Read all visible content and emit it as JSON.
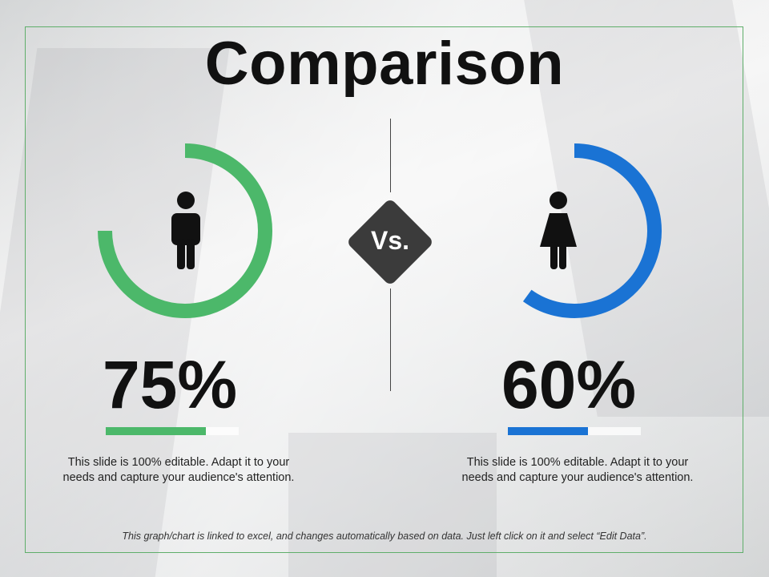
{
  "title": "Comparison",
  "vs_label": "Vs.",
  "footnote": "This graph/chart is linked to excel, and changes automatically based on data.  Just left click on it and select “Edit Data”.",
  "chart_data": [
    {
      "type": "pie",
      "subtype": "donut",
      "icon": "male-person-icon",
      "value": 75,
      "label": "75%",
      "color": "#4cb86a",
      "description": "This slide is 100% editable. Adapt it to your needs and capture your audience's attention."
    },
    {
      "type": "pie",
      "subtype": "donut",
      "icon": "female-person-icon",
      "value": 60,
      "label": "60%",
      "color": "#1a73d4",
      "description": "This slide is 100% editable. Adapt it to your needs and capture your audience's attention."
    }
  ]
}
